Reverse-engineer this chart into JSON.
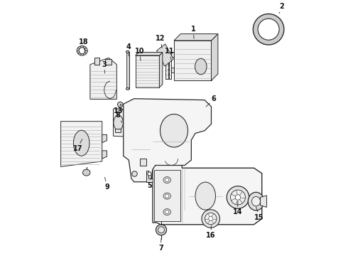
{
  "bg_color": "#ffffff",
  "lc": "#2a2a2a",
  "lw": 0.7,
  "figsize": [
    4.9,
    3.6
  ],
  "dpi": 100,
  "label_positions": {
    "1": [
      0.575,
      0.845,
      0.572,
      0.88
    ],
    "2": [
      0.895,
      0.94,
      0.905,
      0.965
    ],
    "3": [
      0.24,
      0.715,
      0.238,
      0.748
    ],
    "4": [
      0.33,
      0.78,
      0.328,
      0.815
    ],
    "5": [
      0.415,
      0.33,
      0.408,
      0.295
    ],
    "6": [
      0.62,
      0.59,
      0.65,
      0.618
    ],
    "7": [
      0.452,
      0.095,
      0.45,
      0.06
    ],
    "8": [
      0.305,
      0.53,
      0.29,
      0.558
    ],
    "9": [
      0.24,
      0.325,
      0.25,
      0.29
    ],
    "10": [
      0.375,
      0.762,
      0.37,
      0.798
    ],
    "11": [
      0.49,
      0.762,
      0.482,
      0.798
    ],
    "12": [
      0.455,
      0.81,
      0.448,
      0.845
    ],
    "13": [
      0.308,
      0.577,
      0.29,
      0.574
    ],
    "14": [
      0.74,
      0.235,
      0.738,
      0.195
    ],
    "15": [
      0.808,
      0.215,
      0.82,
      0.175
    ],
    "16": [
      0.64,
      0.145,
      0.638,
      0.108
    ],
    "17": [
      0.155,
      0.468,
      0.138,
      0.432
    ],
    "18": [
      0.165,
      0.795,
      0.16,
      0.832
    ]
  }
}
